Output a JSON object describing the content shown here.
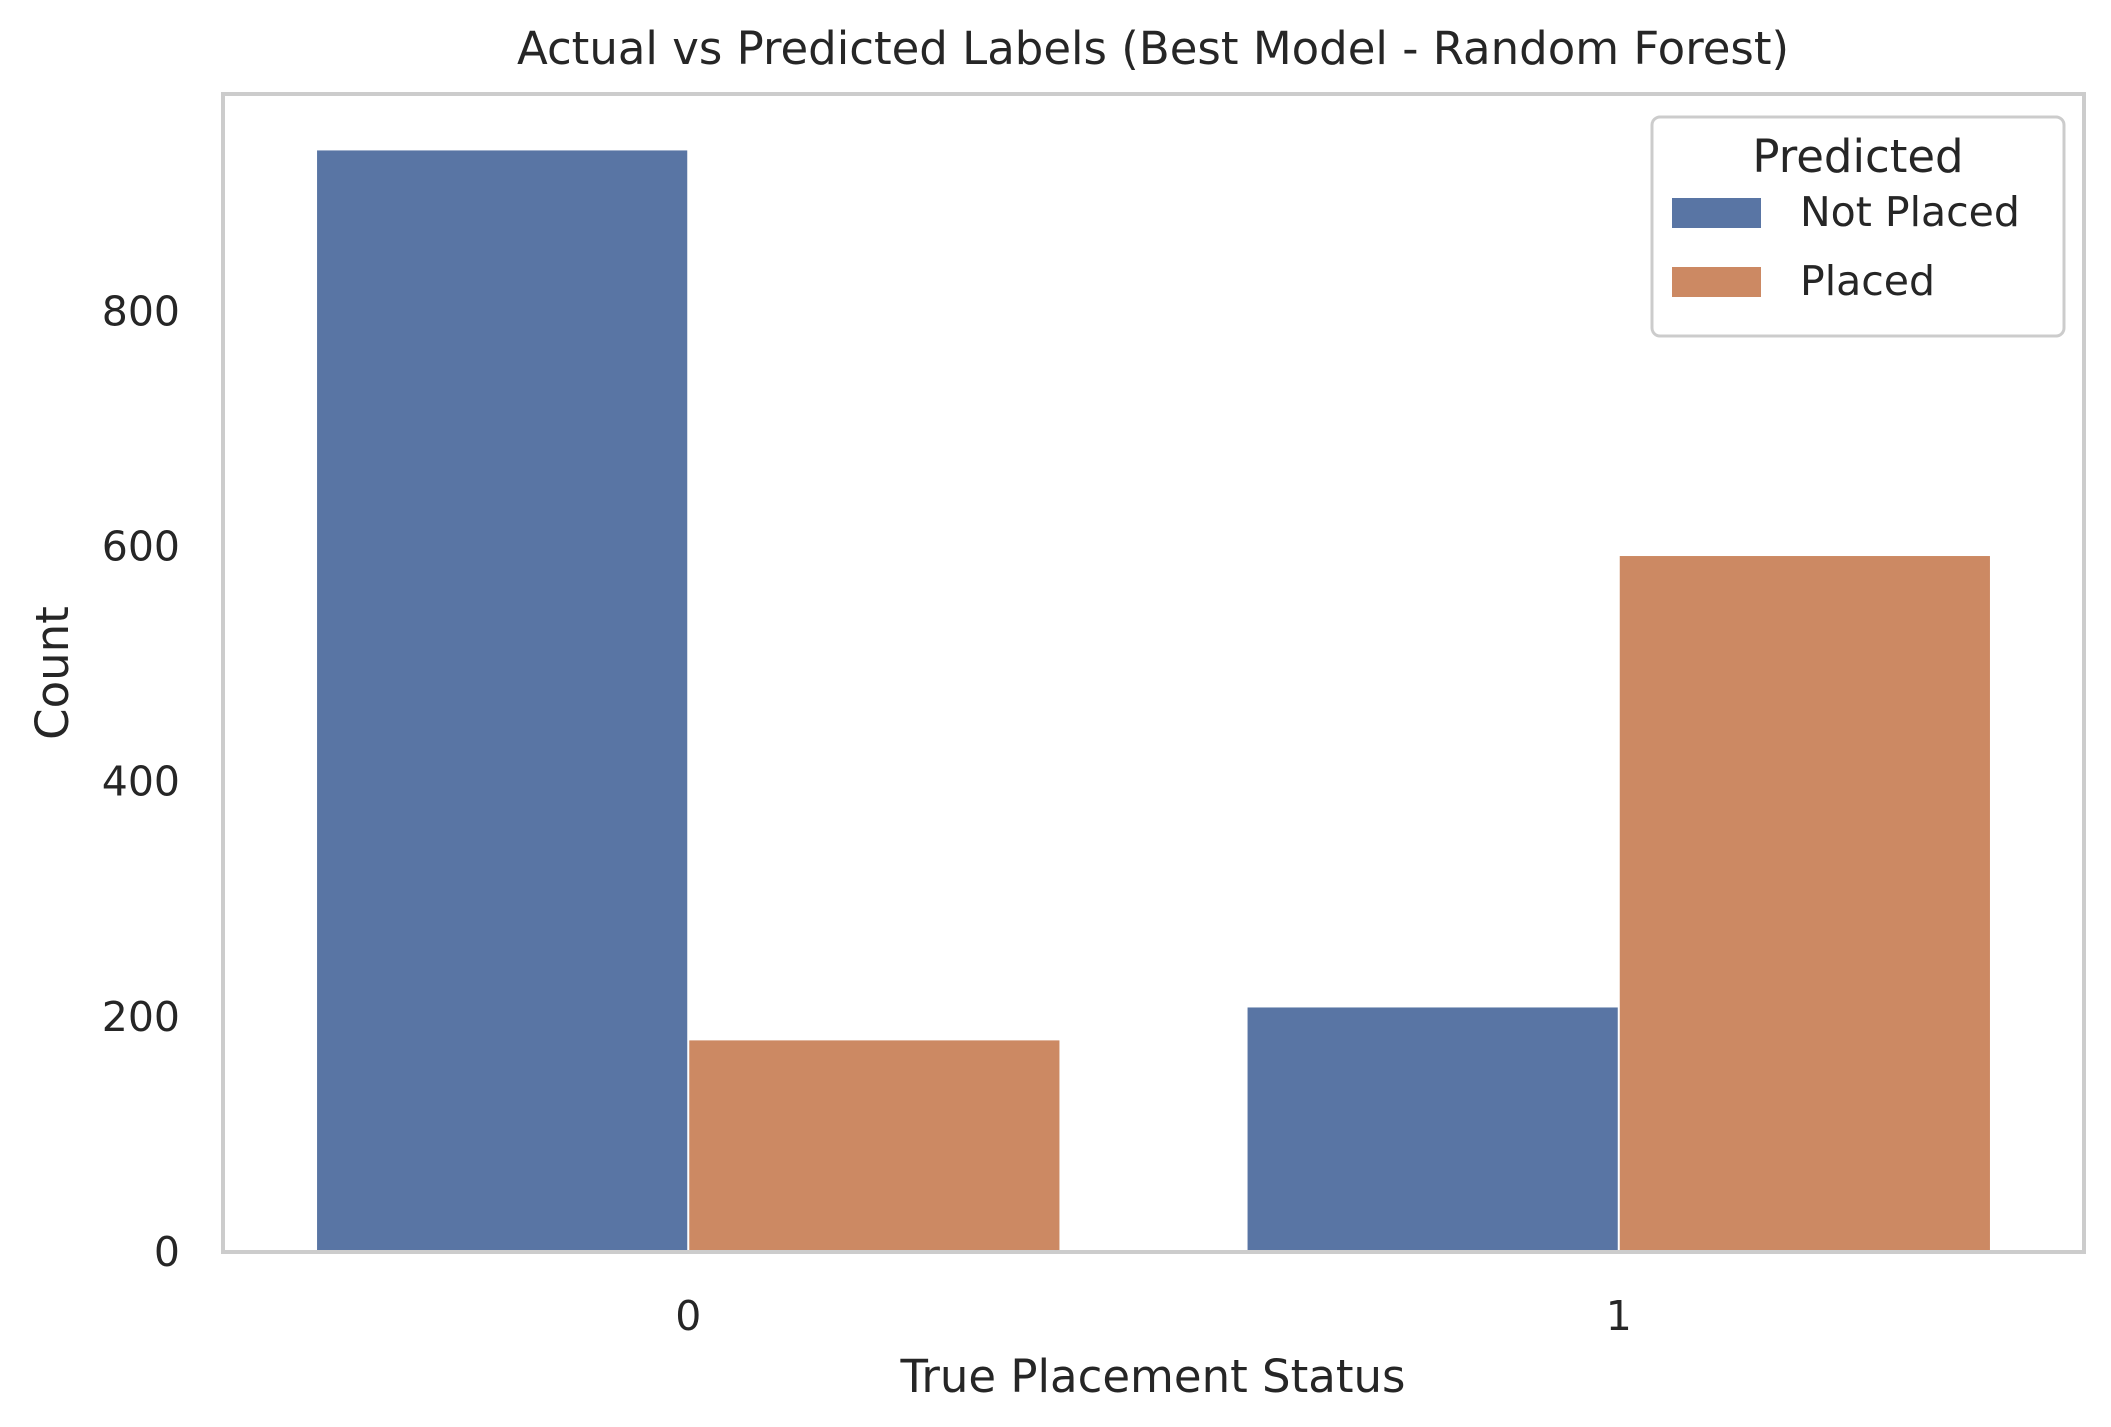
{
  "chart_data": {
    "type": "bar",
    "title": "Actual vs Predicted Labels (Best Model - Random Forest)",
    "xlabel": "True Placement Status",
    "ylabel": "Count",
    "categories": [
      "0",
      "1"
    ],
    "series": [
      {
        "name": "Not Placed",
        "values": [
          937,
          208
        ],
        "color": "#5975a4"
      },
      {
        "name": "Placed",
        "values": [
          180,
          592
        ],
        "color": "#cc8963"
      }
    ],
    "ylim": [
      0,
      985
    ],
    "yticks": [
      0,
      200,
      400,
      600,
      800
    ],
    "legend": {
      "title": "Predicted",
      "placement": "top-right"
    },
    "grid": false
  }
}
